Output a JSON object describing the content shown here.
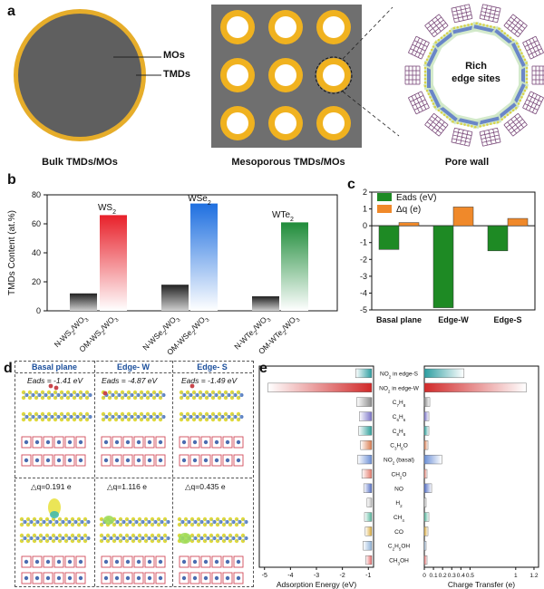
{
  "panel_a": {
    "letter": "a",
    "labels": {
      "mos": "MOs",
      "tmds": "TMDs",
      "rich": "Rich",
      "edge_sites": "edge sites"
    },
    "captions": {
      "bulk": "Bulk TMDs/MOs",
      "mesoporous": "Mesoporous TMDs/MOs",
      "pore_wall": "Pore wall"
    }
  },
  "panel_b": {
    "letter": "b",
    "chart_data": {
      "type": "bar",
      "ylabel": "TMDs Content (at.%)",
      "ylim": [
        0,
        80
      ],
      "yticks": [
        "0",
        "20",
        "40",
        "60",
        "80"
      ],
      "categories": [
        "N-WS2/WO3",
        "OM-WS2/WO3",
        "N-WSe2/WO3",
        "OM-WSe2/WO3",
        "N-WTe2/WO3",
        "OM-WTe2/WO3"
      ],
      "values": [
        12,
        66,
        18,
        74,
        10,
        61
      ],
      "colors": [
        "#222222",
        "#e8202a",
        "#222222",
        "#1e6fe0",
        "#222222",
        "#1f8c3a"
      ],
      "annotations": [
        "WS2",
        "WSe2",
        "WTe2"
      ]
    }
  },
  "panel_c": {
    "letter": "c",
    "chart_data": {
      "type": "bar",
      "categories": [
        "Basal plane",
        "Edge-W",
        "Edge-S"
      ],
      "ylim": [
        -5,
        2
      ],
      "yticks": [
        "2",
        "1",
        "0",
        "-1",
        "-2",
        "-3",
        "-4",
        "-5"
      ],
      "series": [
        {
          "name": "Eads (eV)",
          "values": [
            -1.41,
            -4.87,
            -1.49
          ],
          "color": "#1e8a24"
        },
        {
          "name": "Δq (e)",
          "values": [
            0.191,
            1.116,
            0.435
          ],
          "color": "#f0892a"
        }
      ],
      "legend_position": "top-left"
    }
  },
  "panel_d": {
    "letter": "d",
    "headers": [
      "Basal plane",
      "Edge- W",
      "Edge- S"
    ],
    "eads": [
      "Eads = -1.41 eV",
      "Eads = -4.87 eV",
      "Eads = -1.49 eV"
    ],
    "dq": [
      "△q=0.191 e",
      "△q=1.116 e",
      "△q=0.435 e"
    ]
  },
  "panel_e": {
    "letter": "e",
    "chart_data": {
      "type": "bar",
      "categories": [
        "NO2 in edge-S",
        "NO2 in edge-W",
        "C7H8",
        "C6H6",
        "C8H8",
        "C3H6O",
        "NO2 (basal)",
        "CH2O",
        "NO",
        "H2",
        "CH4",
        "CO",
        "C2H5OH",
        "CH3OH"
      ],
      "adsorption_energy": {
        "xlabel": "Adsorption Energy (eV)",
        "xticks": [
          "-5",
          "-4",
          "-3",
          "-2",
          "-1"
        ],
        "xlim": [
          -5.2,
          -0.8
        ],
        "values": [
          -1.49,
          -4.87,
          -1.45,
          -1.35,
          -1.38,
          -1.3,
          -1.41,
          -1.25,
          -1.18,
          -1.05,
          -1.15,
          -1.12,
          -1.2,
          -1.1
        ]
      },
      "charge_transfer": {
        "xlabel": "Charge Transfer (e)",
        "xticks": [
          "0",
          "0.1",
          "0.2",
          "0.3",
          "0.4",
          "0.5",
          "1",
          "1.2"
        ],
        "values": [
          0.435,
          1.116,
          0.06,
          0.05,
          0.05,
          0.04,
          0.191,
          0.03,
          0.08,
          0.02,
          0.05,
          0.04,
          0.02,
          0.03
        ]
      },
      "bar_colors": [
        "#2c9da0",
        "#d12a2a",
        "#8a8a8a",
        "#7a73c8",
        "#2e9f9a",
        "#d97b4e",
        "#6b8fd6",
        "#e47a6b",
        "#5570c5",
        "#c0c0c0",
        "#53b59a",
        "#d9a93a",
        "#8fb3d9",
        "#e56b6b"
      ]
    }
  }
}
